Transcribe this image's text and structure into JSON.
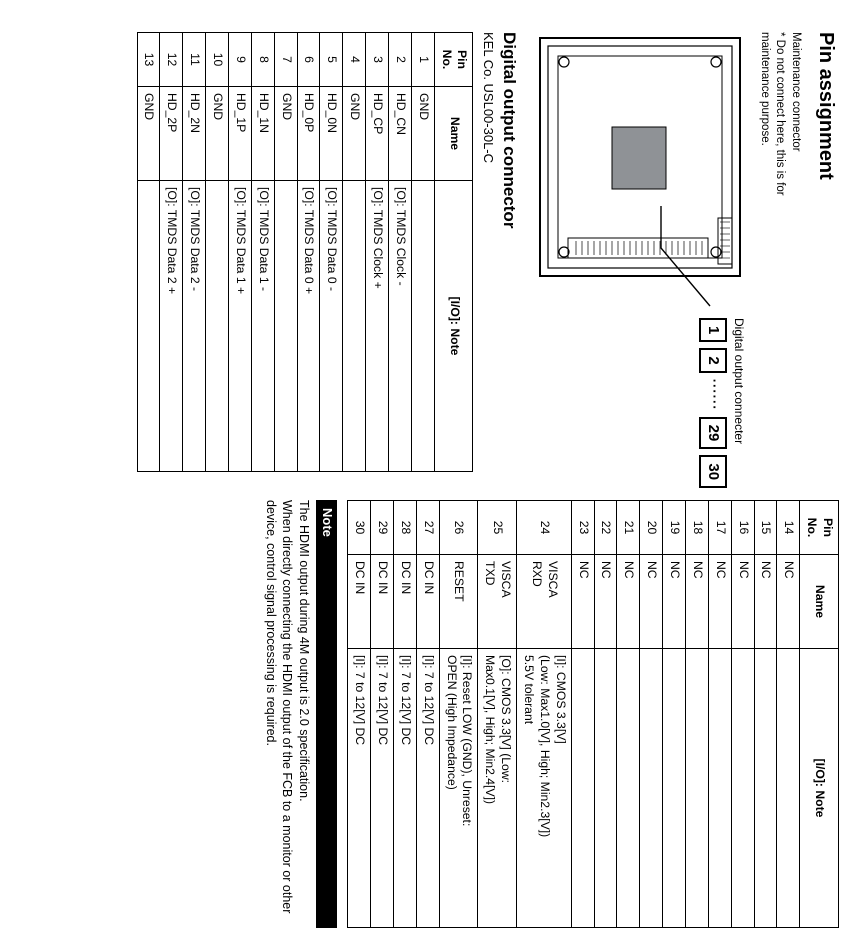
{
  "colors": {
    "text": "#000000",
    "bg": "#ffffff",
    "border": "#000000",
    "noteBg": "#000000",
    "noteFg": "#ffffff",
    "deviceFill": "#8f9296"
  },
  "headings": {
    "pinAssignment": "Pin assignment",
    "digitalOut": "Digital output connector"
  },
  "maintenance": {
    "line1": "Maintenance connector",
    "line2": "* Do not connect here, this is for",
    "line3": "  maintenance purpose."
  },
  "connector": {
    "label": "Digital output connecter",
    "pins": [
      "1",
      "2",
      "29",
      "30"
    ],
    "dots": "······"
  },
  "kelco": "KEL Co.  USL00-30L-C",
  "tableHeaders": {
    "pin": "Pin No.",
    "name": "Name",
    "note": "[I/O]: Note"
  },
  "leftTable": [
    {
      "pin": "1",
      "name": "GND",
      "note": ""
    },
    {
      "pin": "2",
      "name": "HD_CN",
      "note": "[O]: TMDS Clock -"
    },
    {
      "pin": "3",
      "name": "HD_CP",
      "note": "[O]: TMDS Clock +"
    },
    {
      "pin": "4",
      "name": "GND",
      "note": ""
    },
    {
      "pin": "5",
      "name": "HD_0N",
      "note": "[O]: TMDS Data 0 -"
    },
    {
      "pin": "6",
      "name": "HD_0P",
      "note": "[O]: TMDS Data 0 +"
    },
    {
      "pin": "7",
      "name": "GND",
      "note": ""
    },
    {
      "pin": "8",
      "name": "HD_1N",
      "note": "[O]: TMDS Data 1 -"
    },
    {
      "pin": "9",
      "name": "HD_1P",
      "note": "[O]: TMDS Data 1 +"
    },
    {
      "pin": "10",
      "name": "GND",
      "note": ""
    },
    {
      "pin": "11",
      "name": "HD_2N",
      "note": "[O]: TMDS Data 2 -"
    },
    {
      "pin": "12",
      "name": "HD_2P",
      "note": "[O]: TMDS Data 2 +"
    },
    {
      "pin": "13",
      "name": "GND",
      "note": ""
    }
  ],
  "rightTable": [
    {
      "pin": "14",
      "name": "NC",
      "note": ""
    },
    {
      "pin": "15",
      "name": "NC",
      "note": ""
    },
    {
      "pin": "16",
      "name": "NC",
      "note": ""
    },
    {
      "pin": "17",
      "name": "NC",
      "note": ""
    },
    {
      "pin": "18",
      "name": "NC",
      "note": ""
    },
    {
      "pin": "19",
      "name": "NC",
      "note": ""
    },
    {
      "pin": "20",
      "name": "NC",
      "note": ""
    },
    {
      "pin": "21",
      "name": "NC",
      "note": ""
    },
    {
      "pin": "22",
      "name": "NC",
      "note": ""
    },
    {
      "pin": "23",
      "name": "NC",
      "note": ""
    },
    {
      "pin": "24",
      "name": "VISCA\nRXD",
      "note": "[I]: CMOS 3.3[V]\n(Low: Max1.0[V], High; Min2.3[V])\n5.5V tolerant"
    },
    {
      "pin": "25",
      "name": "VISCA\nTXD",
      "note": "[O]: CMOS 3.3[V] (Low:\nMax0.1[V], High; Min2.4[V])"
    },
    {
      "pin": "26",
      "name": "RESET",
      "note": "[I]: Reset LOW (GND), Unreset:\nOPEN (High Impedance)"
    },
    {
      "pin": "27",
      "name": "DC IN",
      "note": "[I]: 7 to 12[V] DC"
    },
    {
      "pin": "28",
      "name": "DC IN",
      "note": "[I]: 7 to 12[V] DC"
    },
    {
      "pin": "29",
      "name": "DC IN",
      "note": "[I]: 7 to 12[V] DC"
    },
    {
      "pin": "30",
      "name": "DC IN",
      "note": "[I]: 7 to 12[V] DC"
    }
  ],
  "note": {
    "label": "Note",
    "text": "The HDMI output during 4M output is 2.0 specification.\nWhen directly connecting the HDMI output of the FCB to a monitor or other device, control signal processing is required."
  }
}
